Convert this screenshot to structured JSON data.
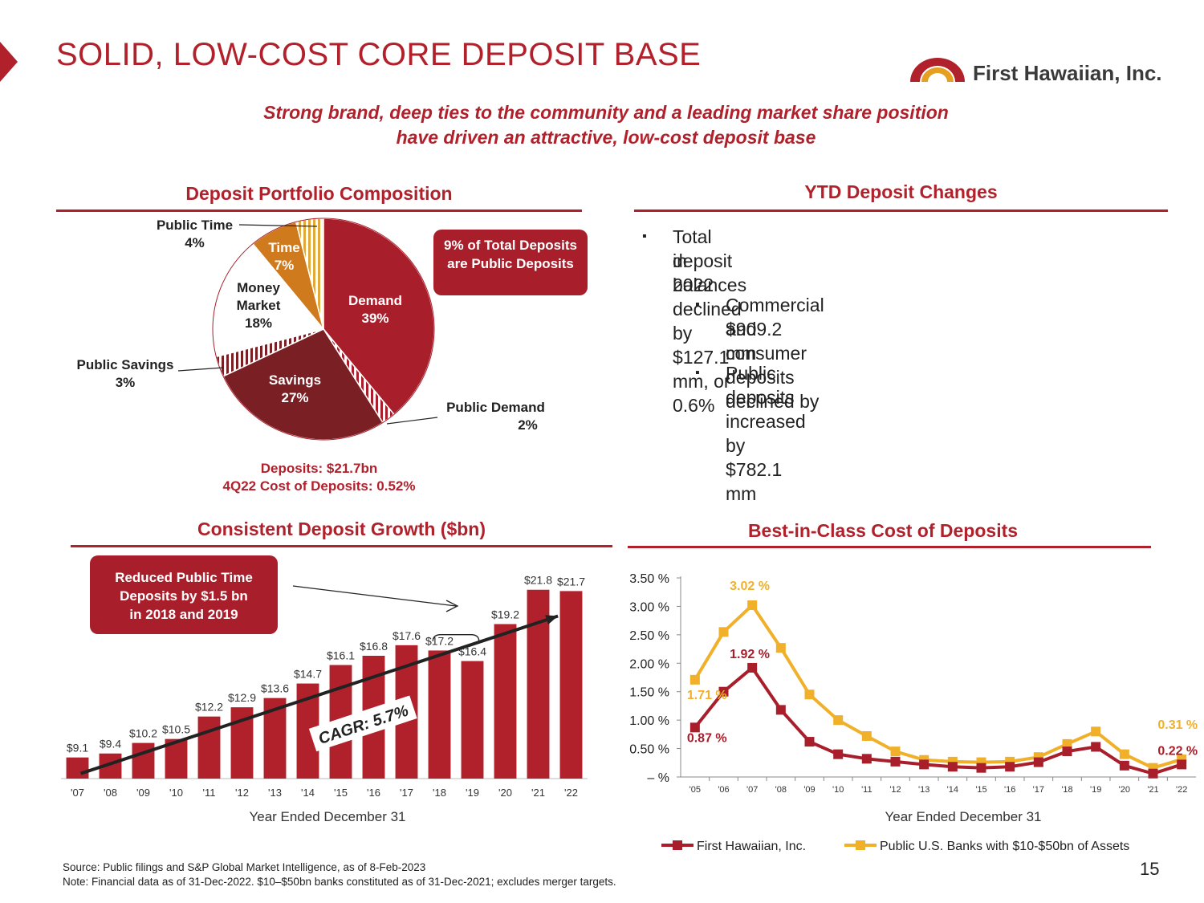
{
  "header": {
    "title": "SOLID, LOW-COST CORE DEPOSIT BASE",
    "logo_text": "First Hawaiian, Inc.",
    "subtitle_line1": "Strong brand, deep ties to the community and a leading market share position",
    "subtitle_line2": "have driven an attractive, low-cost deposit base"
  },
  "composition": {
    "heading": "Deposit Portfolio Composition",
    "callout": "9% of Total Deposits are Public Deposits",
    "summary_line1": "Deposits: $21.7bn",
    "summary_line2": "4Q22 Cost of Deposits: 0.52%",
    "labels": {
      "demand_name": "Demand",
      "demand_pct": "39%",
      "public_demand_name": "Public Demand",
      "public_demand_pct": "2%",
      "savings_name": "Savings",
      "savings_pct": "27%",
      "public_savings_name": "Public Savings",
      "public_savings_pct": "3%",
      "money_market_name1": "Money",
      "money_market_name2": "Market",
      "money_market_pct": "18%",
      "time_name": "Time",
      "time_pct": "7%",
      "public_time_name": "Public Time",
      "public_time_pct": "4%"
    }
  },
  "ytd": {
    "heading": "YTD Deposit Changes",
    "bullet1_line1": "Total deposit balances declined by $127.1 mm, or 0.6%",
    "bullet1_line2": "in 2022",
    "bullet2_line1": "Commercial and consumer deposits declined by",
    "bullet2_line2": "$909.2 mm",
    "bullet3": "Public deposits increased by $782.1 mm",
    "bullet_glyph": "▪"
  },
  "growth": {
    "heading": "Consistent Deposit Growth ($bn)",
    "callout_line1": "Reduced Public Time",
    "callout_line2": "Deposits by $1.5 bn",
    "callout_line3": "in 2018 and 2019",
    "cagr": "CAGR:  5.7%",
    "xaxis_title": "Year Ended December 31"
  },
  "cost": {
    "heading": "Best-in-Class Cost of Deposits",
    "xaxis_title": "Year Ended December 31"
  },
  "chart_data": [
    {
      "type": "pie",
      "title": "Deposit Portfolio Composition",
      "slices": [
        {
          "name": "Demand",
          "value": 39,
          "color": "#a81f2b"
        },
        {
          "name": "Public Demand",
          "value": 2,
          "color": "#a81f2b",
          "pattern": "stripes"
        },
        {
          "name": "Savings",
          "value": 27,
          "color": "#7a1f24"
        },
        {
          "name": "Public Savings",
          "value": 3,
          "color": "#7a1f24",
          "pattern": "stripes"
        },
        {
          "name": "Money Market",
          "value": 18,
          "color": "#ffffff"
        },
        {
          "name": "Time",
          "value": 7,
          "color": "#cf7a1c"
        },
        {
          "name": "Public Time",
          "value": 4,
          "color": "#e0a93a",
          "pattern": "stripes"
        }
      ]
    },
    {
      "type": "bar",
      "title": "Consistent Deposit Growth ($bn)",
      "xlabel": "Year Ended December 31",
      "categories": [
        "'07",
        "'08",
        "'09",
        "'10",
        "'11",
        "'12",
        "'13",
        "'14",
        "'15",
        "'16",
        "'17",
        "'18",
        "'19",
        "'20",
        "'21",
        "'22"
      ],
      "values": [
        9.1,
        9.4,
        10.2,
        10.5,
        12.2,
        12.9,
        13.6,
        14.7,
        16.1,
        16.8,
        17.6,
        17.2,
        16.4,
        19.2,
        21.8,
        21.7
      ],
      "value_labels": [
        "$9.1",
        "$9.4",
        "$10.2",
        "$10.5",
        "$12.2",
        "$12.9",
        "$13.6",
        "$14.7",
        "$16.1",
        "$16.8",
        "$17.6",
        "$17.2",
        "$16.4",
        "$19.2",
        "$21.8",
        "$21.7"
      ],
      "ylim": [
        7.5,
        23
      ],
      "trend_label": "CAGR:  5.7%",
      "color": "#b0212c"
    },
    {
      "type": "line",
      "title": "Best-in-Class Cost of Deposits",
      "xlabel": "Year Ended December 31",
      "categories": [
        "'05",
        "'06",
        "'07",
        "'08",
        "'09",
        "'10",
        "'11",
        "'12",
        "'13",
        "'14",
        "'15",
        "'16",
        "'17",
        "'18",
        "'19",
        "'20",
        "'21",
        "'22"
      ],
      "ylim": [
        0,
        3.5
      ],
      "yticks": [
        0,
        0.5,
        1.0,
        1.5,
        2.0,
        2.5,
        3.0,
        3.5
      ],
      "ytick_labels": [
        "– %",
        "0.50 %",
        "1.00 %",
        "1.50 %",
        "2.00 %",
        "2.50 %",
        "3.00 %",
        "3.50 %"
      ],
      "series": [
        {
          "name": "First Hawaiian, Inc.",
          "color": "#a81f2b",
          "values": [
            0.87,
            1.5,
            1.92,
            1.18,
            0.62,
            0.4,
            0.32,
            0.27,
            0.22,
            0.18,
            0.16,
            0.18,
            0.26,
            0.45,
            0.53,
            0.2,
            0.06,
            0.22
          ],
          "annotations": [
            {
              "index": 0,
              "label": "0.87 %"
            },
            {
              "index": 2,
              "label": "1.92 %"
            },
            {
              "index": 17,
              "label": "0.22 %"
            }
          ]
        },
        {
          "name": "Public U.S. Banks with $10-$50bn of Assets",
          "color": "#f0b02a",
          "values": [
            1.71,
            2.55,
            3.02,
            2.27,
            1.45,
            1.0,
            0.72,
            0.45,
            0.3,
            0.27,
            0.26,
            0.27,
            0.35,
            0.58,
            0.8,
            0.4,
            0.16,
            0.31
          ],
          "annotations": [
            {
              "index": 0,
              "label": "1.71 %"
            },
            {
              "index": 2,
              "label": "3.02 %"
            },
            {
              "index": 17,
              "label": "0.31 %"
            }
          ]
        }
      ]
    }
  ]
}
